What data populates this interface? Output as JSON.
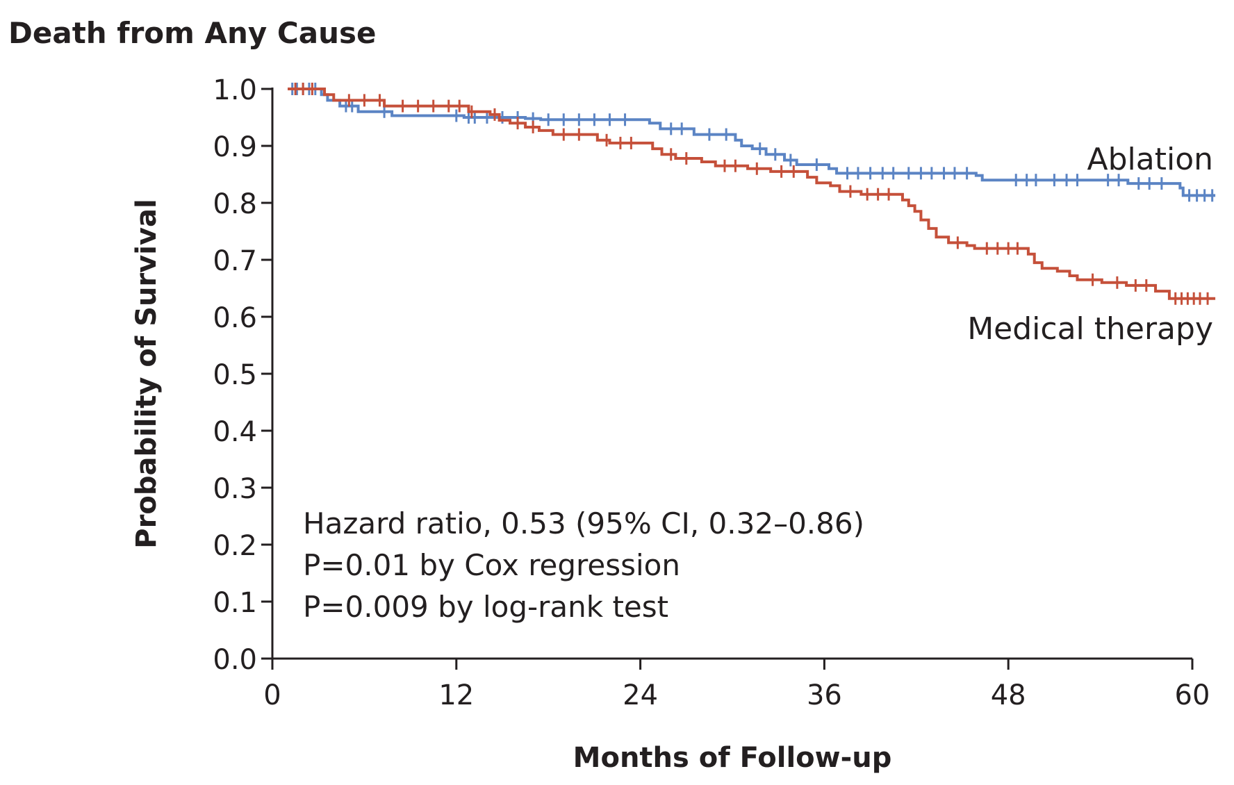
{
  "chart_data": {
    "type": "line",
    "title": "Death from Any Cause",
    "xlabel": "Months of Follow-up",
    "ylabel": "Probability of Survival",
    "xlim": [
      0,
      60
    ],
    "ylim": [
      0.0,
      1.0
    ],
    "xticks": [
      "0",
      "12",
      "24",
      "36",
      "48",
      "60"
    ],
    "yticks": [
      "0.0",
      "0.1",
      "0.2",
      "0.3",
      "0.4",
      "0.5",
      "0.6",
      "0.7",
      "0.8",
      "0.9",
      "1.0"
    ],
    "grid": false,
    "annotations": [
      "Hazard ratio, 0.53 (95% CI, 0.32–0.86)",
      "P=0.01 by Cox regression",
      "P=0.009 by log-rank test"
    ],
    "series": [
      {
        "name": "Ablation",
        "color": "#5b84c4",
        "steps": [
          [
            1.0,
            1.0
          ],
          [
            3.2,
            0.99
          ],
          [
            3.6,
            0.98
          ],
          [
            4.4,
            0.97
          ],
          [
            5.6,
            0.96
          ],
          [
            7.8,
            0.953
          ],
          [
            12.5,
            0.95
          ],
          [
            16.5,
            0.948
          ],
          [
            17.5,
            0.946
          ],
          [
            24.6,
            0.94
          ],
          [
            25.3,
            0.93
          ],
          [
            27.5,
            0.92
          ],
          [
            30.2,
            0.91
          ],
          [
            30.6,
            0.9
          ],
          [
            31.3,
            0.895
          ],
          [
            32.2,
            0.885
          ],
          [
            33.4,
            0.875
          ],
          [
            34.2,
            0.867
          ],
          [
            36.3,
            0.86
          ],
          [
            36.8,
            0.852
          ],
          [
            45.9,
            0.848
          ],
          [
            46.3,
            0.84
          ],
          [
            55.8,
            0.834
          ],
          [
            59.2,
            0.826
          ],
          [
            59.4,
            0.813
          ],
          [
            61.5,
            0.813
          ]
        ],
        "censored": [
          1.3,
          1.6,
          2.0,
          2.4,
          2.8,
          4.8,
          5.2,
          7.3,
          12.0,
          12.8,
          13.2,
          14.0,
          15.0,
          16.0,
          17.0,
          18.0,
          19.0,
          20.0,
          21.0,
          22.0,
          23.0,
          26.0,
          26.7,
          28.5,
          29.6,
          31.8,
          32.8,
          33.8,
          35.5,
          37.5,
          38.2,
          39.0,
          39.8,
          40.5,
          41.5,
          42.3,
          43.0,
          43.8,
          44.5,
          45.3,
          48.5,
          49.2,
          49.8,
          51.0,
          51.8,
          52.5,
          54.5,
          55.2,
          56.5,
          57.2,
          58.0,
          59.8,
          60.3,
          60.8,
          61.3
        ]
      },
      {
        "name": "Medical therapy",
        "color": "#c5503a",
        "steps": [
          [
            1.0,
            1.0
          ],
          [
            3.4,
            0.99
          ],
          [
            4.0,
            0.98
          ],
          [
            7.3,
            0.97
          ],
          [
            12.8,
            0.96
          ],
          [
            14.2,
            0.955
          ],
          [
            14.8,
            0.945
          ],
          [
            15.5,
            0.94
          ],
          [
            16.5,
            0.933
          ],
          [
            17.4,
            0.927
          ],
          [
            18.3,
            0.92
          ],
          [
            21.2,
            0.91
          ],
          [
            22.0,
            0.905
          ],
          [
            24.8,
            0.895
          ],
          [
            25.4,
            0.885
          ],
          [
            26.3,
            0.878
          ],
          [
            28.0,
            0.872
          ],
          [
            28.9,
            0.865
          ],
          [
            31.0,
            0.86
          ],
          [
            32.5,
            0.855
          ],
          [
            34.9,
            0.845
          ],
          [
            35.5,
            0.835
          ],
          [
            36.4,
            0.83
          ],
          [
            37.0,
            0.82
          ],
          [
            38.4,
            0.815
          ],
          [
            41.1,
            0.805
          ],
          [
            41.5,
            0.795
          ],
          [
            41.9,
            0.785
          ],
          [
            42.3,
            0.77
          ],
          [
            42.8,
            0.755
          ],
          [
            43.3,
            0.74
          ],
          [
            44.1,
            0.73
          ],
          [
            45.3,
            0.725
          ],
          [
            45.8,
            0.72
          ],
          [
            49.3,
            0.71
          ],
          [
            49.7,
            0.695
          ],
          [
            50.2,
            0.685
          ],
          [
            51.2,
            0.68
          ],
          [
            52.0,
            0.672
          ],
          [
            52.5,
            0.665
          ],
          [
            54.1,
            0.66
          ],
          [
            55.7,
            0.655
          ],
          [
            57.6,
            0.645
          ],
          [
            58.5,
            0.632
          ],
          [
            61.5,
            0.632
          ]
        ],
        "censored": [
          1.5,
          2.0,
          2.6,
          5.0,
          6.0,
          7.0,
          8.5,
          9.5,
          10.5,
          11.5,
          12.2,
          13.0,
          14.5,
          16.0,
          17.0,
          19.0,
          20.0,
          21.8,
          22.7,
          23.4,
          26.0,
          27.0,
          29.5,
          30.2,
          31.6,
          33.2,
          34.0,
          37.7,
          38.8,
          39.5,
          40.2,
          44.7,
          46.6,
          47.3,
          48.0,
          48.6,
          53.5,
          55.1,
          56.3,
          57.0,
          58.9,
          59.3,
          59.7,
          60.1,
          60.5,
          61.0
        ]
      }
    ]
  }
}
